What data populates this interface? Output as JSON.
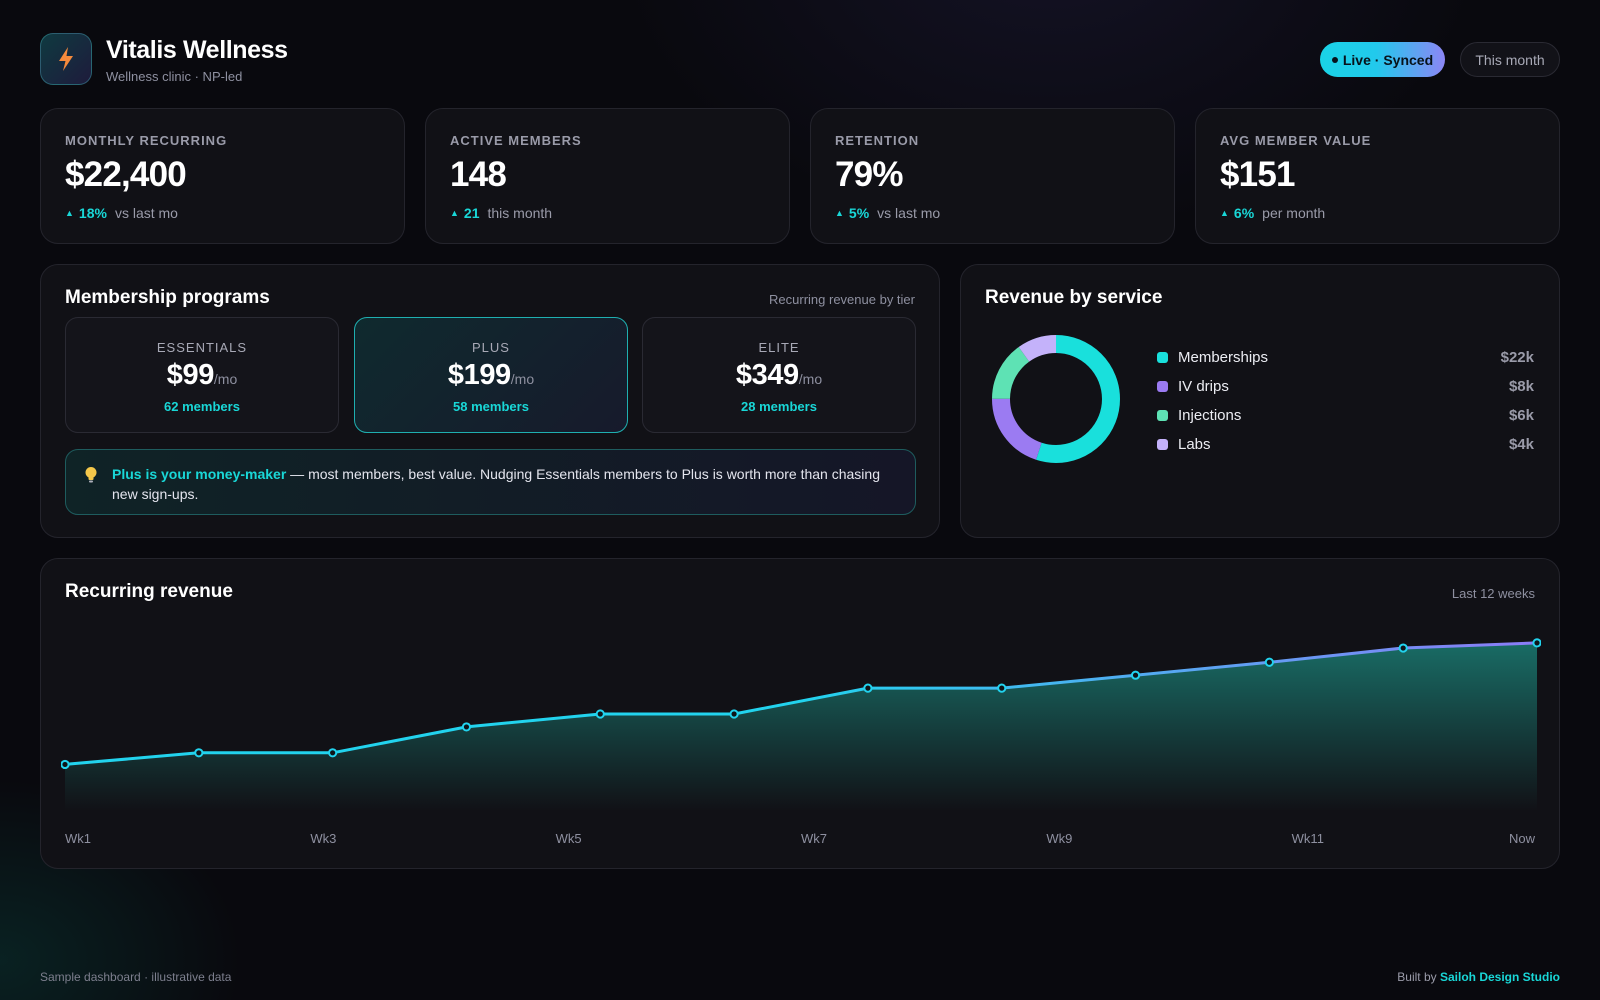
{
  "brand": {
    "title": "Vitalis Wellness",
    "subtitle": "Wellness clinic · NP-led",
    "logo_icon": "lightning-bolt-icon"
  },
  "header": {
    "status_label": "Live · Synced",
    "range_label": "This month"
  },
  "kpis": [
    {
      "label": "MONTHLY RECURRING",
      "value": "$22,400",
      "change": "18%",
      "note": "vs last mo"
    },
    {
      "label": "ACTIVE MEMBERS",
      "value": "148",
      "change": "21",
      "note": "this month"
    },
    {
      "label": "RETENTION",
      "value": "79%",
      "change": "5%",
      "note": "vs last mo"
    },
    {
      "label": "AVG MEMBER VALUE",
      "value": "$151",
      "change": "6%",
      "note": "per month"
    }
  ],
  "membership": {
    "title": "Membership programs",
    "note": "Recurring revenue by tier",
    "tiers": [
      {
        "name": "ESSENTIALS",
        "price": "$99",
        "unit": "/mo",
        "members": "62 members"
      },
      {
        "name": "PLUS",
        "price": "$199",
        "unit": "/mo",
        "members": "58 members"
      },
      {
        "name": "ELITE",
        "price": "$349",
        "unit": "/mo",
        "members": "28 members"
      }
    ],
    "tip": {
      "icon": "lightbulb-icon",
      "strong": "Plus is your money-maker",
      "text": " — most members, best value. Nudging Essentials members to Plus is worth more than chasing new sign-ups."
    }
  },
  "service": {
    "title": "Revenue by service",
    "items": [
      {
        "label": "Memberships",
        "value": "$22k",
        "amount": 22,
        "color": "#19E0DC"
      },
      {
        "label": "IV drips",
        "value": "$8k",
        "amount": 8,
        "color": "#9B7BF2"
      },
      {
        "label": "Injections",
        "value": "$6k",
        "amount": 6,
        "color": "#5EE2B4"
      },
      {
        "label": "Labs",
        "value": "$4k",
        "amount": 4,
        "color": "#C4B2FA"
      }
    ]
  },
  "revenue_chart": {
    "title": "Recurring revenue",
    "note": "Last 12 weeks"
  },
  "chart_data": {
    "type": "area",
    "title": "Recurring revenue",
    "x": [
      "Wk1",
      "Wk2",
      "Wk3",
      "Wk4",
      "Wk5",
      "Wk6",
      "Wk7",
      "Wk8",
      "Wk9",
      "Wk10",
      "Wk11",
      "Now"
    ],
    "x_tick_labels": [
      "Wk1",
      "Wk3",
      "Wk5",
      "Wk7",
      "Wk9",
      "Wk11",
      "Now"
    ],
    "series": [
      {
        "values": [
          8.6,
          9.5,
          9.5,
          11.5,
          12.5,
          12.5,
          14.5,
          14.5,
          15.5,
          16.5,
          17.6,
          18.0
        ]
      }
    ],
    "ylim": [
      5,
      20
    ],
    "grid": false,
    "line_colors": [
      "#22D3EE",
      "#8B7CF6"
    ],
    "fill_color": "#1A7C73"
  },
  "footer": {
    "left": "Sample dashboard · illustrative data",
    "built_by": "Built by",
    "studio": "Sailoh Design Studio"
  }
}
